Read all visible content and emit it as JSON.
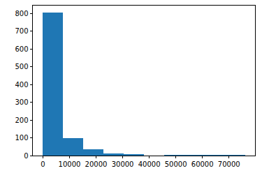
{
  "chart_data": {
    "type": "histogram",
    "bins": [
      0,
      7600,
      15200,
      22800,
      30400,
      38000,
      45600,
      53200,
      60800,
      68400,
      76000
    ],
    "values": [
      805,
      97,
      35,
      12,
      7,
      0,
      3,
      2,
      2,
      1
    ],
    "color": "#1f77b4",
    "xlim": [
      -3800,
      79800
    ],
    "xticks": [
      0,
      10000,
      20000,
      30000,
      40000,
      50000,
      60000,
      70000
    ],
    "ylim": [
      0,
      845
    ],
    "yticks": [
      0,
      100,
      200,
      300,
      400,
      500,
      600,
      700,
      800
    ],
    "grid": false
  }
}
